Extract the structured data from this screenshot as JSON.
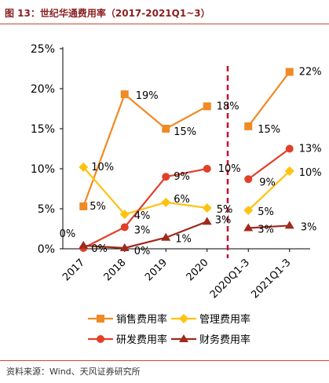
{
  "header": {
    "title": "图 13：世纪华通费用率（2017-2021Q1~3）"
  },
  "footer": {
    "source": "资料来源：Wind、天风证券研究所"
  },
  "chart_data": {
    "type": "line",
    "categories": [
      "2017",
      "2018",
      "2019",
      "2020",
      "2020Q1-3",
      "2021Q1-3"
    ],
    "segments": [
      [
        0,
        3
      ],
      [
        4,
        5
      ]
    ],
    "divider_between": [
      3,
      4
    ],
    "ylim": [
      0,
      25
    ],
    "yticks": [
      0,
      5,
      10,
      15,
      20,
      25
    ],
    "ytick_labels": [
      "0%",
      "5%",
      "10%",
      "15%",
      "20%",
      "25%"
    ],
    "xlabel": "",
    "ylabel": "",
    "legend_position": "bottom",
    "series": [
      {
        "name": "销售费用率",
        "color": "#f08a24",
        "marker": "square",
        "values": [
          5.3,
          19.3,
          15.0,
          17.8,
          15.3,
          22.1
        ],
        "labels": [
          "5%",
          "19%",
          "15%",
          "18%",
          "15%",
          "22%"
        ]
      },
      {
        "name": "管理费用率",
        "color": "#ffc20e",
        "marker": "diamond",
        "values": [
          10.2,
          4.3,
          5.8,
          5.1,
          4.8,
          9.7
        ],
        "labels": [
          "10%",
          "4%",
          "6%",
          "5%",
          "5%",
          "10%"
        ]
      },
      {
        "name": "研发费用率",
        "color": "#e0402a",
        "marker": "circle",
        "values": [
          0.1,
          2.7,
          9.0,
          10.0,
          8.7,
          12.5
        ],
        "labels": [
          "0%",
          "3%",
          "9%",
          "10%",
          "9%",
          "13%"
        ]
      },
      {
        "name": "财务费用率",
        "color": "#a12a1c",
        "marker": "triangle",
        "values": [
          0.4,
          0.1,
          1.4,
          3.4,
          2.6,
          2.9
        ],
        "labels": [
          "0%",
          "0%",
          "1%",
          "3%",
          "3%",
          "3%"
        ]
      }
    ]
  }
}
